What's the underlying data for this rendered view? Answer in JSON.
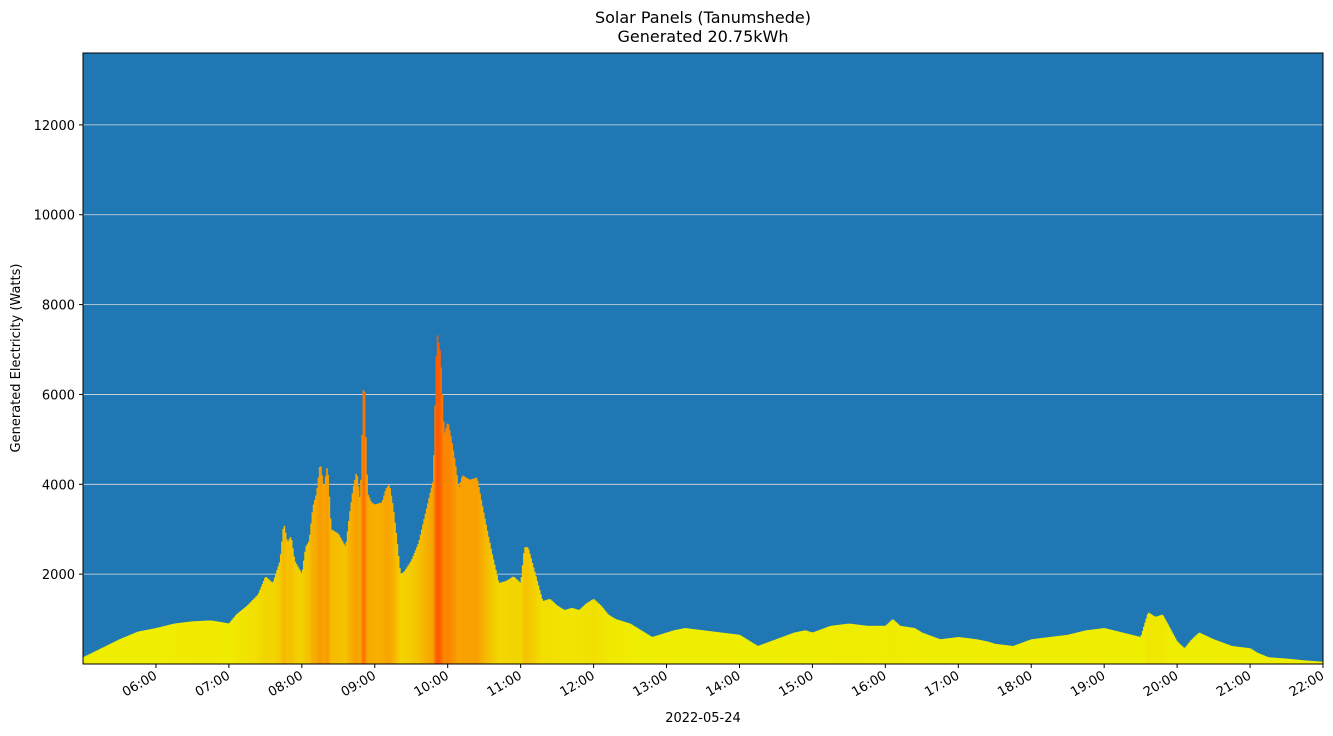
{
  "chart_data": {
    "type": "bar",
    "title": "Solar Panels (Tanumshede)",
    "subtitle": "Generated 20.75kWh",
    "xlabel": "2022-05-24",
    "ylabel": "Generated Electricity (Watts)",
    "x_range_hours": [
      5.0,
      22.0
    ],
    "ylim": [
      0,
      13600
    ],
    "y_ticks": [
      2000,
      4000,
      6000,
      8000,
      10000,
      12000
    ],
    "x_ticks": [
      "06:00",
      "07:00",
      "08:00",
      "09:00",
      "10:00",
      "11:00",
      "12:00",
      "13:00",
      "14:00",
      "15:00",
      "16:00",
      "17:00",
      "18:00",
      "19:00",
      "20:00",
      "21:00",
      "22:00"
    ],
    "grid": "y",
    "colors": {
      "background": "#1f77b4",
      "grid": "#dcdcdc",
      "low": "#f0ee00",
      "high": "#ff5a00"
    },
    "profile": [
      [
        5.0,
        150
      ],
      [
        5.25,
        350
      ],
      [
        5.5,
        550
      ],
      [
        5.75,
        720
      ],
      [
        6.0,
        800
      ],
      [
        6.25,
        900
      ],
      [
        6.5,
        950
      ],
      [
        6.75,
        970
      ],
      [
        6.9,
        930
      ],
      [
        7.0,
        900
      ],
      [
        7.1,
        1100
      ],
      [
        7.25,
        1300
      ],
      [
        7.4,
        1550
      ],
      [
        7.5,
        1950
      ],
      [
        7.6,
        1800
      ],
      [
        7.7,
        2300
      ],
      [
        7.75,
        3150
      ],
      [
        7.8,
        2700
      ],
      [
        7.85,
        2850
      ],
      [
        7.9,
        2300
      ],
      [
        8.0,
        2000
      ],
      [
        8.05,
        2600
      ],
      [
        8.1,
        2750
      ],
      [
        8.15,
        3500
      ],
      [
        8.2,
        3800
      ],
      [
        8.25,
        4500
      ],
      [
        8.3,
        3900
      ],
      [
        8.35,
        4450
      ],
      [
        8.4,
        3000
      ],
      [
        8.5,
        2900
      ],
      [
        8.6,
        2600
      ],
      [
        8.65,
        3300
      ],
      [
        8.7,
        3900
      ],
      [
        8.75,
        4300
      ],
      [
        8.8,
        3600
      ],
      [
        8.85,
        6600
      ],
      [
        8.87,
        5300
      ],
      [
        8.9,
        3800
      ],
      [
        8.95,
        3600
      ],
      [
        9.0,
        3550
      ],
      [
        9.1,
        3600
      ],
      [
        9.15,
        3900
      ],
      [
        9.2,
        4000
      ],
      [
        9.25,
        3500
      ],
      [
        9.3,
        2800
      ],
      [
        9.35,
        2000
      ],
      [
        9.4,
        2050
      ],
      [
        9.5,
        2300
      ],
      [
        9.6,
        2700
      ],
      [
        9.7,
        3400
      ],
      [
        9.8,
        4100
      ],
      [
        9.85,
        7400
      ],
      [
        9.9,
        6900
      ],
      [
        9.95,
        5100
      ],
      [
        10.0,
        5400
      ],
      [
        10.05,
        5000
      ],
      [
        10.1,
        4500
      ],
      [
        10.15,
        3900
      ],
      [
        10.2,
        4200
      ],
      [
        10.3,
        4100
      ],
      [
        10.4,
        4150
      ],
      [
        10.5,
        3300
      ],
      [
        10.6,
        2500
      ],
      [
        10.7,
        1800
      ],
      [
        10.8,
        1850
      ],
      [
        10.9,
        1950
      ],
      [
        11.0,
        1800
      ],
      [
        11.05,
        2600
      ],
      [
        11.1,
        2600
      ],
      [
        11.2,
        2000
      ],
      [
        11.3,
        1400
      ],
      [
        11.4,
        1450
      ],
      [
        11.5,
        1300
      ],
      [
        11.6,
        1200
      ],
      [
        11.7,
        1250
      ],
      [
        11.8,
        1200
      ],
      [
        11.9,
        1350
      ],
      [
        12.0,
        1450
      ],
      [
        12.1,
        1300
      ],
      [
        12.2,
        1100
      ],
      [
        12.3,
        1000
      ],
      [
        12.5,
        900
      ],
      [
        12.6,
        800
      ],
      [
        12.7,
        700
      ],
      [
        12.8,
        600
      ],
      [
        12.9,
        650
      ],
      [
        13.0,
        700
      ],
      [
        13.1,
        750
      ],
      [
        13.25,
        800
      ],
      [
        13.5,
        750
      ],
      [
        13.75,
        700
      ],
      [
        14.0,
        650
      ],
      [
        14.1,
        550
      ],
      [
        14.25,
        400
      ],
      [
        14.5,
        550
      ],
      [
        14.75,
        700
      ],
      [
        14.9,
        750
      ],
      [
        15.0,
        700
      ],
      [
        15.25,
        850
      ],
      [
        15.5,
        900
      ],
      [
        15.75,
        850
      ],
      [
        16.0,
        850
      ],
      [
        16.1,
        1000
      ],
      [
        16.2,
        850
      ],
      [
        16.4,
        800
      ],
      [
        16.5,
        700
      ],
      [
        16.75,
        550
      ],
      [
        17.0,
        600
      ],
      [
        17.25,
        550
      ],
      [
        17.4,
        500
      ],
      [
        17.5,
        450
      ],
      [
        17.75,
        400
      ],
      [
        18.0,
        550
      ],
      [
        18.25,
        600
      ],
      [
        18.5,
        650
      ],
      [
        18.75,
        750
      ],
      [
        19.0,
        800
      ],
      [
        19.25,
        700
      ],
      [
        19.5,
        600
      ],
      [
        19.6,
        1150
      ],
      [
        19.7,
        1050
      ],
      [
        19.8,
        1100
      ],
      [
        19.9,
        800
      ],
      [
        20.0,
        500
      ],
      [
        20.1,
        350
      ],
      [
        20.2,
        550
      ],
      [
        20.3,
        700
      ],
      [
        20.5,
        550
      ],
      [
        20.75,
        400
      ],
      [
        21.0,
        350
      ],
      [
        21.1,
        250
      ],
      [
        21.25,
        150
      ],
      [
        21.5,
        120
      ],
      [
        21.75,
        80
      ],
      [
        22.0,
        50
      ]
    ]
  }
}
